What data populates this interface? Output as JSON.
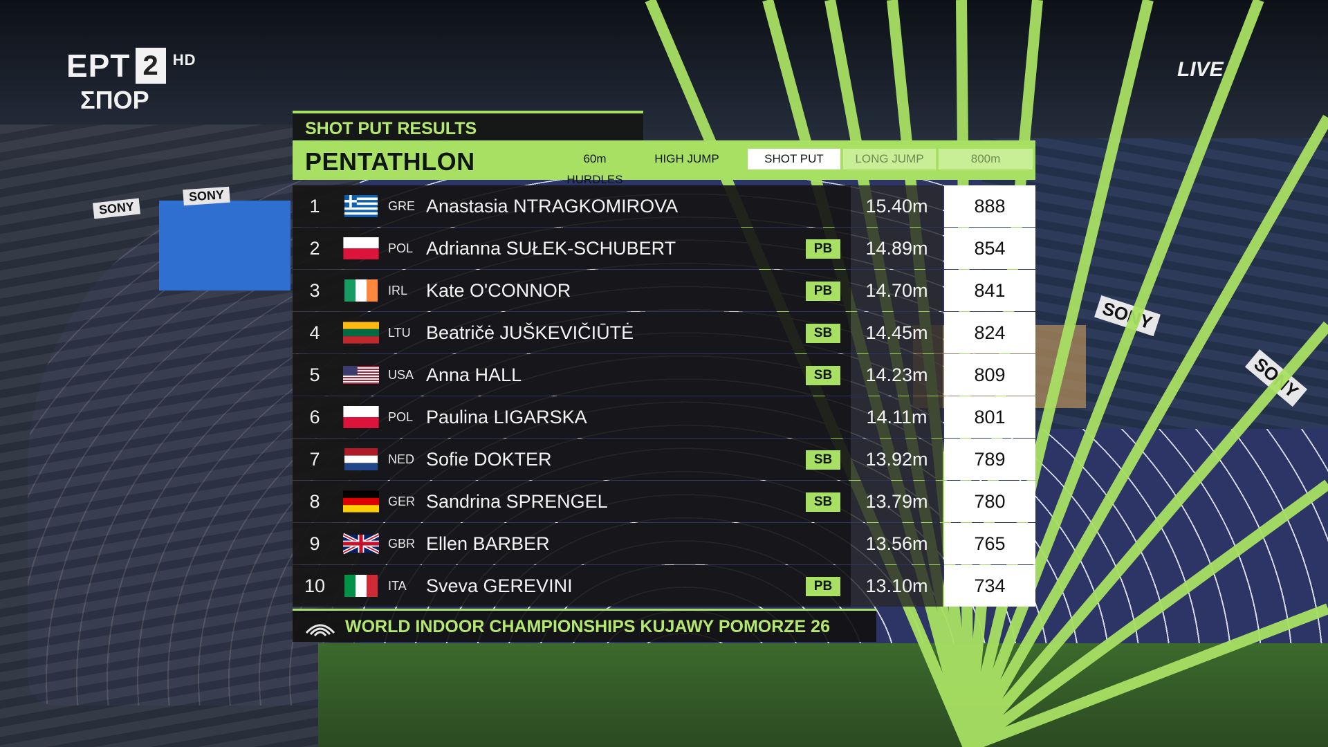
{
  "broadcaster": {
    "name": "ΕΡΤ",
    "channel": "2",
    "quality": "HD",
    "subtitle": "ΣΠΟΡ"
  },
  "live_label": "LIVE",
  "header": {
    "results_title": "SHOT PUT RESULTS",
    "event": "PENTATHLON"
  },
  "tabs": [
    {
      "label": "60m HURDLES",
      "state": "done"
    },
    {
      "label": "HIGH JUMP",
      "state": "done"
    },
    {
      "label": "SHOT PUT",
      "state": "active"
    },
    {
      "label": "LONG JUMP",
      "state": "upcoming"
    },
    {
      "label": "800m",
      "state": "upcoming"
    }
  ],
  "rows": [
    {
      "rank": "1",
      "country": "GRE",
      "flag": "greece-flag",
      "name": "Anastasia NTRAGKOMIROVA",
      "badge": "",
      "mark": "15.40m",
      "points": "888"
    },
    {
      "rank": "2",
      "country": "POL",
      "flag": "poland-flag",
      "name": "Adrianna SUŁEK-SCHUBERT",
      "badge": "PB",
      "mark": "14.89m",
      "points": "854"
    },
    {
      "rank": "3",
      "country": "IRL",
      "flag": "ireland-flag",
      "name": "Kate O'CONNOR",
      "badge": "PB",
      "mark": "14.70m",
      "points": "841"
    },
    {
      "rank": "4",
      "country": "LTU",
      "flag": "lithuania-flag",
      "name": "Beatričė JUŠKEVIČIŪTĖ",
      "badge": "SB",
      "mark": "14.45m",
      "points": "824"
    },
    {
      "rank": "5",
      "country": "USA",
      "flag": "usa-flag",
      "name": "Anna HALL",
      "badge": "SB",
      "mark": "14.23m",
      "points": "809"
    },
    {
      "rank": "6",
      "country": "POL",
      "flag": "poland-flag",
      "name": "Paulina LIGARSKA",
      "badge": "",
      "mark": "14.11m",
      "points": "801"
    },
    {
      "rank": "7",
      "country": "NED",
      "flag": "netherlands-flag",
      "name": "Sofie DOKTER",
      "badge": "SB",
      "mark": "13.92m",
      "points": "789"
    },
    {
      "rank": "8",
      "country": "GER",
      "flag": "germany-flag",
      "name": "Sandrina SPRENGEL",
      "badge": "SB",
      "mark": "13.79m",
      "points": "780"
    },
    {
      "rank": "9",
      "country": "GBR",
      "flag": "uk-flag",
      "name": "Ellen BARBER",
      "badge": "",
      "mark": "13.56m",
      "points": "765"
    },
    {
      "rank": "10",
      "country": "ITA",
      "flag": "italy-flag",
      "name": "Sveva GEREVINI",
      "badge": "PB",
      "mark": "13.10m",
      "points": "734"
    }
  ],
  "footer": {
    "title": "WORLD INDOOR CHAMPIONSHIPS KUJAWY POMORZE 26"
  },
  "arena_ads": [
    "SONY",
    "SONY",
    "SONY",
    "SONY"
  ],
  "colors": {
    "accent": "#a8e063",
    "panel": "#161616",
    "points_bg": "#ffffff"
  }
}
